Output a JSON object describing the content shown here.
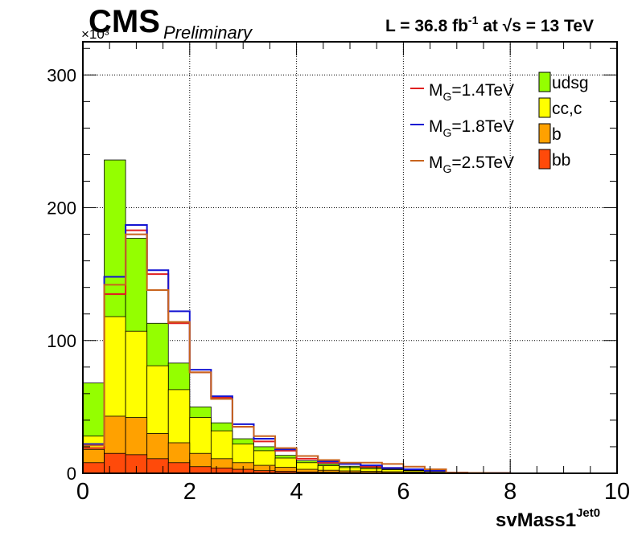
{
  "header": {
    "cms": "CMS",
    "preliminary": "Preliminary",
    "lumi_main": "L = 36.8 fb",
    "lumi_exp": "-1",
    "lumi_at": " at ",
    "lumi_sqrt": "√",
    "lumi_energy": "s = 13 TeV"
  },
  "chart_data": {
    "type": "histogram",
    "xlabel": "svMass1",
    "xlabel_sup": "Jet0",
    "y_multiplier": "×10³",
    "xlim": [
      0,
      10
    ],
    "ylim": [
      0,
      325
    ],
    "x_ticks": [
      0,
      2,
      4,
      6,
      8,
      10
    ],
    "y_ticks": [
      0,
      100,
      200,
      300
    ],
    "grid": true,
    "legend_position": "top-right",
    "bin_edges": [
      0,
      0.4,
      0.8,
      1.2,
      1.6,
      2.0,
      2.4,
      2.8,
      3.2,
      3.6,
      4.0,
      4.4,
      4.8,
      5.2,
      5.6,
      6.0,
      6.4,
      6.8,
      7.2,
      7.6,
      8.0,
      8.4,
      8.8,
      9.2,
      9.6,
      10.0
    ],
    "stack": [
      {
        "name": "bb",
        "color": "#ff4a0a",
        "values": [
          8,
          15,
          14,
          11,
          8,
          5,
          4,
          3,
          2,
          1.5,
          1,
          0.8,
          0.6,
          0.5,
          0.4,
          0.3,
          0.2,
          0,
          0,
          0,
          0,
          0,
          0,
          0,
          0
        ]
      },
      {
        "name": "b",
        "color": "#ffa100",
        "values": [
          10,
          28,
          28,
          19,
          15,
          10,
          7,
          5,
          4,
          3,
          2,
          1.5,
          1.2,
          1,
          0.8,
          0.6,
          0.3,
          0,
          0,
          0,
          0,
          0,
          0,
          0,
          0
        ]
      },
      {
        "name": "cc,c",
        "color": "#ffff00",
        "values": [
          10,
          75,
          65,
          51,
          40,
          27,
          21,
          14,
          11,
          7,
          5,
          3.5,
          2.5,
          2,
          1.5,
          1,
          0.7,
          0,
          0,
          0,
          0,
          0,
          0,
          0,
          0
        ]
      },
      {
        "name": "udsg",
        "color": "#94ff00",
        "values": [
          40,
          118,
          70,
          32,
          20,
          8,
          6,
          4,
          3,
          2,
          1.5,
          1.2,
          1,
          0.8,
          0.6,
          0.4,
          0.3,
          0,
          0,
          0,
          0,
          0,
          0,
          0,
          0
        ]
      }
    ],
    "signals": [
      {
        "name": "M_G=1.4TeV",
        "label_main": "M",
        "label_sub": "G",
        "label_rest": "=1.4TeV",
        "color": "#e02020",
        "values": [
          19,
          135,
          183,
          150,
          113,
          76,
          57,
          35,
          24,
          17,
          11,
          8,
          7,
          5,
          4,
          3,
          2,
          0.5,
          0.3,
          0.2,
          0,
          0,
          0,
          0,
          0
        ]
      },
      {
        "name": "M_G=1.8TeV",
        "label_main": "M",
        "label_sub": "G",
        "label_rest": "=1.8TeV",
        "color": "#1414d2",
        "values": [
          22,
          148,
          187,
          153,
          122,
          78,
          58,
          37,
          26,
          18,
          13,
          9,
          7,
          6,
          4,
          3,
          2,
          0.5,
          0.3,
          0.2,
          0,
          0,
          0,
          0,
          0
        ]
      },
      {
        "name": "M_G=2.5TeV",
        "label_main": "M",
        "label_sub": "G",
        "label_rest": "=2.5TeV",
        "color": "#c8641e",
        "values": [
          21,
          142,
          180,
          138,
          114,
          76,
          56,
          35,
          28,
          19,
          13,
          10,
          8,
          8,
          7,
          5,
          3,
          0.5,
          0.3,
          0.2,
          0,
          0,
          0,
          0,
          0
        ]
      }
    ]
  }
}
